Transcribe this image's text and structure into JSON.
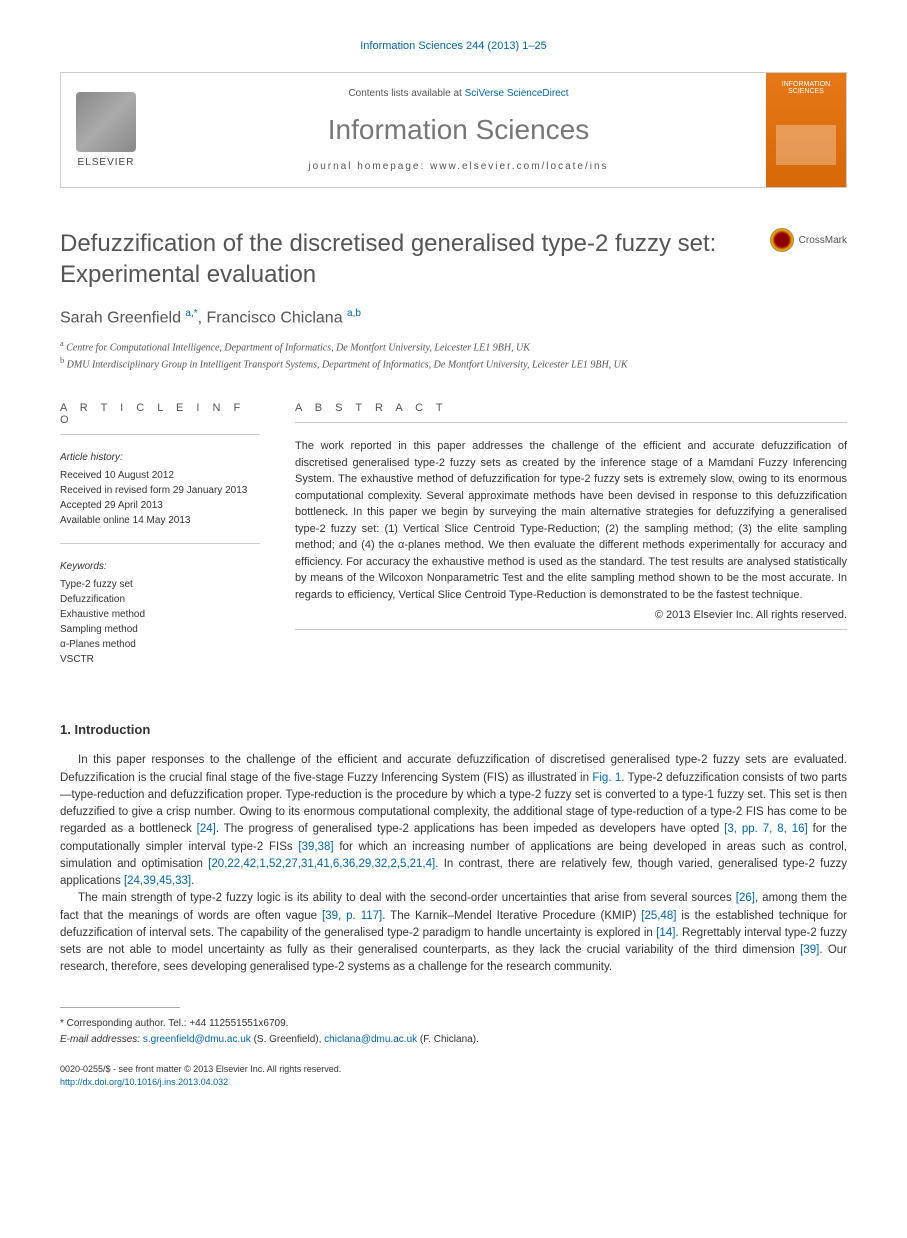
{
  "journal_ref": "Information Sciences 244 (2013) 1–25",
  "header": {
    "elsevier_label": "ELSEVIER",
    "contents_prefix": "Contents lists available at ",
    "contents_link": "SciVerse ScienceDirect",
    "journal_name": "Information Sciences",
    "homepage_prefix": "journal homepage: ",
    "homepage_url": "www.elsevier.com/locate/ins",
    "cover_title": "INFORMATION SCIENCES"
  },
  "crossmark_label": "CrossMark",
  "title": "Defuzzification of the discretised generalised type-2 fuzzy set: Experimental evaluation",
  "authors_html": "Sarah Greenfield <sup>a,*</sup>, Francisco Chiclana <sup>a,b</sup>",
  "affiliations": [
    {
      "sup": "a",
      "text": "Centre for Computational Intelligence, Department of Informatics, De Montfort University, Leicester LE1 9BH, UK"
    },
    {
      "sup": "b",
      "text": "DMU Interdisciplinary Group in Intelligent Transport Systems, Department of Informatics, De Montfort University, Leicester LE1 9BH, UK"
    }
  ],
  "article_info": {
    "heading": "A R T I C L E   I N F O",
    "history_heading": "Article history:",
    "history": [
      "Received 10 August 2012",
      "Received in revised form 29 January 2013",
      "Accepted 29 April 2013",
      "Available online 14 May 2013"
    ],
    "keywords_heading": "Keywords:",
    "keywords": [
      "Type-2 fuzzy set",
      "Defuzzification",
      "Exhaustive method",
      "Sampling method",
      "α-Planes method",
      "VSCTR"
    ]
  },
  "abstract": {
    "heading": "A B S T R A C T",
    "text": "The work reported in this paper addresses the challenge of the efficient and accurate defuzzification of discretised generalised type-2 fuzzy sets as created by the inference stage of a Mamdani Fuzzy Inferencing System. The exhaustive method of defuzzification for type-2 fuzzy sets is extremely slow, owing to its enormous computational complexity. Several approximate methods have been devised in response to this defuzzification bottleneck. In this paper we begin by surveying the main alternative strategies for defuzzifying a generalised type-2 fuzzy set: (1) Vertical Slice Centroid Type-Reduction; (2) the sampling method; (3) the elite sampling method; and (4) the α-planes method. We then evaluate the different methods experimentally for accuracy and efficiency. For accuracy the exhaustive method is used as the standard. The test results are analysed statistically by means of the Wilcoxon Nonparametric Test and the elite sampling method shown to be the most accurate. In regards to efficiency, Vertical Slice Centroid Type-Reduction is demonstrated to be the fastest technique.",
    "copyright": "© 2013 Elsevier Inc. All rights reserved."
  },
  "section1": {
    "heading": "1. Introduction",
    "para1_parts": {
      "p1": "In this paper responses to the challenge of the efficient and accurate defuzzification of discretised generalised type-2 fuzzy sets are evaluated. Defuzzification is the crucial final stage of the five-stage Fuzzy Inferencing System (FIS) as illustrated in ",
      "fig1": "Fig. 1",
      "p2": ". Type-2 defuzzification consists of two parts—type-reduction and defuzzification proper. Type-reduction is the procedure by which a type-2 fuzzy set is converted to a type-1 fuzzy set. This set is then defuzzified to give a crisp number. Owing to its enormous computational complexity, the additional stage of type-reduction of a type-2 FIS has come to be regarded as a bottleneck ",
      "r24a": "[24]",
      "p3": ". The progress of generalised type-2 applications has been impeded as developers have opted ",
      "r3": "[3, pp. 7, 8, 16]",
      "p4": " for the computationally simpler interval type-2 FISs ",
      "r3938": "[39,38]",
      "p5": " for which an increasing number of applications are being developed in areas such as control, simulation and optimisation ",
      "rlist": "[20,22,42,1,52,27,31,41,6,36,29,32,2,5,21,4]",
      "p6": ". In contrast, there are relatively few, though varied, generalised type-2 fuzzy applications ",
      "r24b": "[24,39,45,33]",
      "p7": "."
    },
    "para2_parts": {
      "p1": "The main strength of type-2 fuzzy logic is its ability to deal with the second-order uncertainties that arise from several sources ",
      "r26": "[26]",
      "p2": ", among them the fact that the meanings of words are often vague ",
      "r39p": "[39, p. 117]",
      "p3": ". The Karnik–Mendel Iterative Procedure (KMIP) ",
      "r2548": "[25,48]",
      "p4": " is the established technique for defuzzification of interval sets. The capability of the generalised type-2 paradigm to handle uncertainty is explored in ",
      "r14": "[14]",
      "p5": ". Regrettably interval type-2 fuzzy sets are not able to model uncertainty as fully as their generalised counterparts, as they lack the crucial variability of the third dimension ",
      "r39": "[39]",
      "p6": ". Our research, therefore, sees developing generalised type-2 systems as a challenge for the research community."
    }
  },
  "corresponding": {
    "star": "* Corresponding author. Tel.: +44 112551551x6709.",
    "email_label": "E-mail addresses: ",
    "email1": "s.greenfield@dmu.ac.uk",
    "name1": " (S. Greenfield), ",
    "email2": "chiclana@dmu.ac.uk",
    "name2": " (F. Chiclana)."
  },
  "footer": {
    "issn": "0020-0255/$ - see front matter © 2013 Elsevier Inc. All rights reserved.",
    "doi": "http://dx.doi.org/10.1016/j.ins.2013.04.032"
  }
}
